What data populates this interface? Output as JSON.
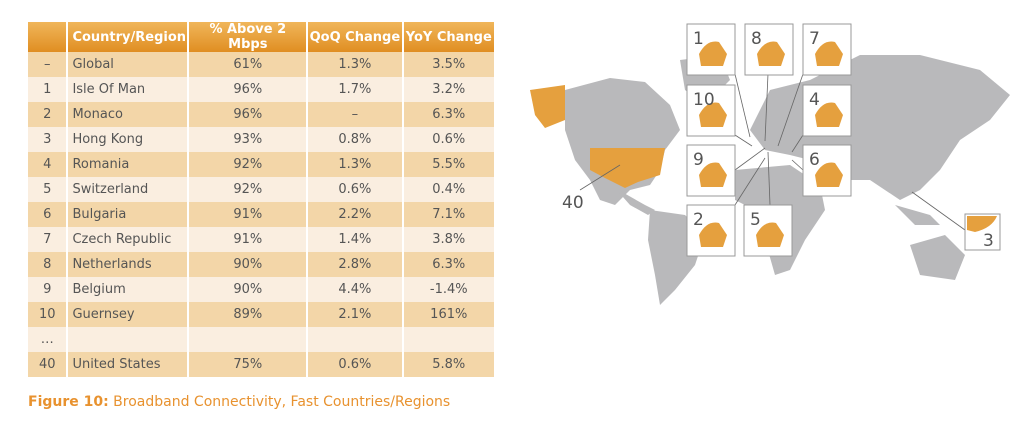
{
  "table": {
    "headers": [
      "",
      "Country/Region",
      "% Above 2 Mbps",
      "QoQ Change",
      "YoY Change"
    ],
    "rows": [
      [
        "–",
        "Global",
        "61%",
        "1.3%",
        "3.5%"
      ],
      [
        "1",
        "Isle Of Man",
        "96%",
        "1.7%",
        "3.2%"
      ],
      [
        "2",
        "Monaco",
        "96%",
        "–",
        "6.3%"
      ],
      [
        "3",
        "Hong Kong",
        "93%",
        "0.8%",
        "0.6%"
      ],
      [
        "4",
        "Romania",
        "92%",
        "1.3%",
        "5.5%"
      ],
      [
        "5",
        "Switzerland",
        "92%",
        "0.6%",
        "0.4%"
      ],
      [
        "6",
        "Bulgaria",
        "91%",
        "2.2%",
        "7.1%"
      ],
      [
        "7",
        "Czech Republic",
        "91%",
        "1.4%",
        "3.8%"
      ],
      [
        "8",
        "Netherlands",
        "90%",
        "2.8%",
        "6.3%"
      ],
      [
        "9",
        "Belgium",
        "90%",
        "4.4%",
        "-1.4%"
      ],
      [
        "10",
        "Guernsey",
        "89%",
        "2.1%",
        "161%"
      ],
      [
        "…",
        "",
        "",
        "",
        ""
      ],
      [
        "40",
        "United States",
        "75%",
        "0.6%",
        "5.8%"
      ]
    ]
  },
  "caption": {
    "label": "Figure 10:",
    "text": " Broadband Connectivity, Fast Countries/Regions"
  },
  "map": {
    "callouts": [
      "1",
      "8",
      "7",
      "10",
      "4",
      "9",
      "6",
      "2",
      "5",
      "3",
      "40"
    ],
    "highlight_color": "#e5a03e",
    "land_color": "#b9b9bb"
  }
}
